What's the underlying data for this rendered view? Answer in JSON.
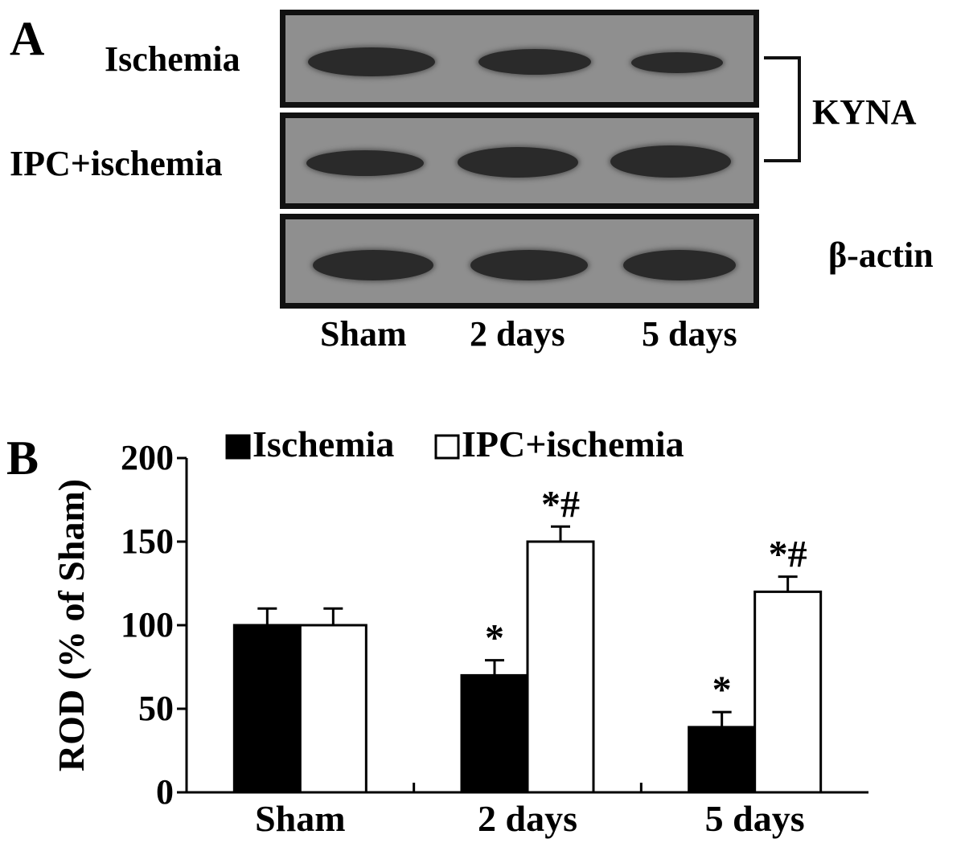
{
  "panel_a": {
    "letter": "A",
    "row_labels": [
      "Ischemia",
      "IPC+ischemia",
      ""
    ],
    "right_labels": {
      "kyna": "KYNA",
      "actin": "β-actin"
    },
    "lanes": [
      "Sham",
      "2 days",
      "5 days"
    ],
    "band_color": "#2a2a2a",
    "membrane_color": "#8f8f8f"
  },
  "panel_b": {
    "letter": "B"
  },
  "chart_data": {
    "type": "bar",
    "title": "",
    "xlabel": "",
    "ylabel": "ROD (% of Sham)",
    "ylim": [
      0,
      200
    ],
    "yticks": [
      "0",
      "50",
      "100",
      "150",
      "200"
    ],
    "categories": [
      "Sham",
      "2 days",
      "5 days"
    ],
    "series": [
      {
        "name": "Ischemia",
        "color": "#000000",
        "values": [
          100,
          70,
          39
        ],
        "errors": [
          10,
          9,
          9
        ],
        "annotations": [
          "",
          "*",
          "*"
        ]
      },
      {
        "name": "IPC+ischemia",
        "color": "#ffffff",
        "values": [
          100,
          150,
          120
        ],
        "errors": [
          10,
          9,
          9
        ],
        "annotations": [
          "",
          "*#",
          "*#"
        ]
      }
    ],
    "legend_position": "top",
    "grid": false
  }
}
